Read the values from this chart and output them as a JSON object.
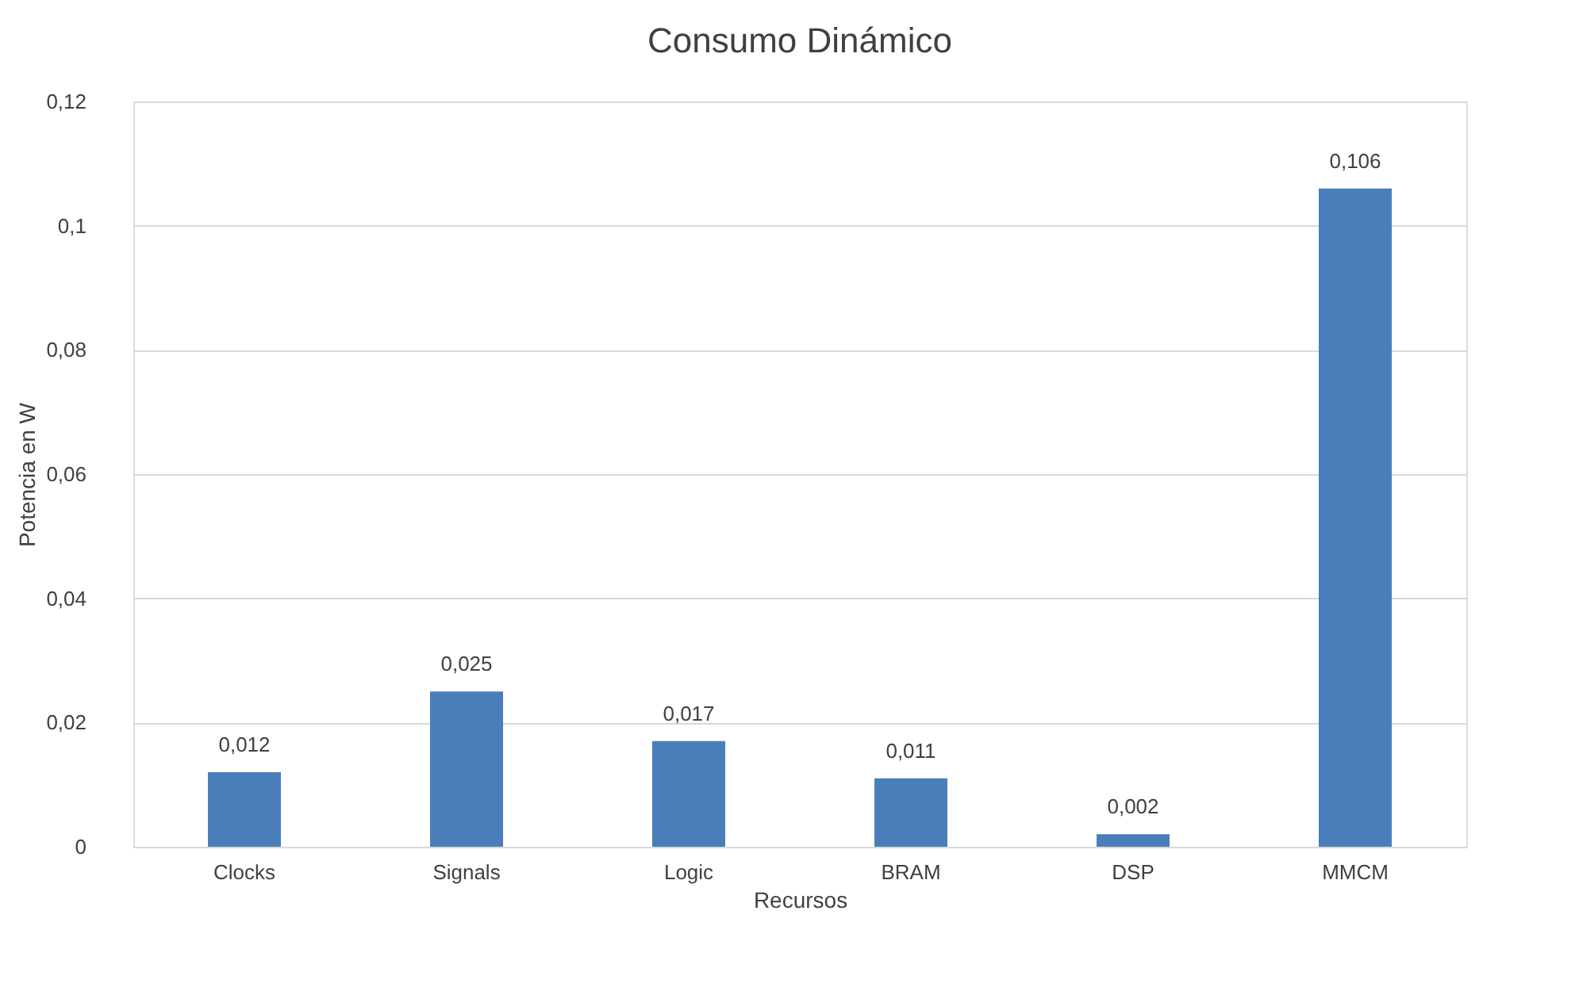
{
  "chart_data": {
    "type": "bar",
    "title": "Consumo Dinámico",
    "xlabel": "Recursos",
    "ylabel": "Potencia en W",
    "categories": [
      "Clocks",
      "Signals",
      "Logic",
      "BRAM",
      "DSP",
      "MMCM"
    ],
    "values": [
      0.012,
      0.025,
      0.017,
      0.011,
      0.002,
      0.106
    ],
    "value_labels": [
      "0,012",
      "0,025",
      "0,017",
      "0,011",
      "0,002",
      "0,106"
    ],
    "color": "#4a7ebb",
    "ylim": [
      0,
      0.12
    ],
    "yticks": [
      0,
      {
        "value": 0.02,
        "label": "0,02"
      },
      {
        "value": 0.04,
        "label": "0,04"
      },
      {
        "value": 0.06,
        "label": "0,06"
      },
      {
        "value": 0.08,
        "label": "0,08"
      },
      {
        "value": 0.1,
        "label": "0,1"
      },
      {
        "value": 0.12,
        "label": "0,12"
      }
    ],
    "grid": "y"
  }
}
